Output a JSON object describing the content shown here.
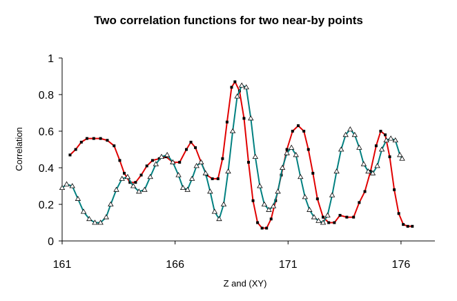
{
  "chart_data": {
    "type": "line",
    "title": "Two correlation functions for two near-by points",
    "xlabel": "Z and (XY)",
    "ylabel": "Correlation",
    "xlim": [
      161,
      177.5
    ],
    "ylim": [
      0,
      1
    ],
    "xticks": [
      161,
      166,
      171,
      176
    ],
    "yticks": [
      0,
      0.2,
      0.4,
      0.6,
      0.8,
      1
    ],
    "ytick_labels": [
      "0",
      "0.2",
      "0.4",
      "0.6",
      "0.8",
      "1"
    ],
    "grid": false,
    "legend": "none",
    "series": [
      {
        "color": "#e00000",
        "marker": "square",
        "marker_color": "#000000",
        "x": [
          161.35,
          161.6,
          161.85,
          162.1,
          162.4,
          162.7,
          163.0,
          163.3,
          163.55,
          163.75,
          164.0,
          164.25,
          164.5,
          164.75,
          165.0,
          165.3,
          165.6,
          165.9,
          166.2,
          166.5,
          166.7,
          166.9,
          167.15,
          167.4,
          167.65,
          167.9,
          168.1,
          168.3,
          168.5,
          168.65,
          168.85,
          169.05,
          169.25,
          169.45,
          169.65,
          169.85,
          170.05,
          170.25,
          170.45,
          170.7,
          170.95,
          171.2,
          171.45,
          171.7,
          171.9,
          172.1,
          172.3,
          172.55,
          172.8,
          173.05,
          173.3,
          173.6,
          173.9,
          174.15,
          174.4,
          174.65,
          174.9,
          175.1,
          175.3,
          175.5,
          175.7,
          175.9,
          176.1,
          176.3,
          176.5
        ],
        "y": [
          0.47,
          0.5,
          0.54,
          0.56,
          0.56,
          0.56,
          0.55,
          0.52,
          0.44,
          0.37,
          0.32,
          0.32,
          0.36,
          0.41,
          0.44,
          0.45,
          0.46,
          0.43,
          0.43,
          0.5,
          0.54,
          0.51,
          0.43,
          0.36,
          0.34,
          0.34,
          0.45,
          0.65,
          0.84,
          0.87,
          0.82,
          0.67,
          0.43,
          0.22,
          0.1,
          0.07,
          0.07,
          0.12,
          0.22,
          0.36,
          0.5,
          0.6,
          0.63,
          0.6,
          0.5,
          0.37,
          0.23,
          0.13,
          0.1,
          0.1,
          0.14,
          0.13,
          0.13,
          0.21,
          0.27,
          0.38,
          0.52,
          0.6,
          0.58,
          0.46,
          0.28,
          0.15,
          0.09,
          0.08,
          0.08
        ]
      },
      {
        "color": "#008080",
        "marker": "triangle",
        "marker_color": "#000000",
        "x": [
          161.0,
          161.2,
          161.45,
          161.7,
          161.95,
          162.2,
          162.45,
          162.7,
          162.95,
          163.15,
          163.4,
          163.65,
          163.9,
          164.15,
          164.4,
          164.65,
          164.9,
          165.15,
          165.4,
          165.65,
          165.9,
          166.15,
          166.35,
          166.55,
          166.75,
          166.95,
          167.15,
          167.35,
          167.55,
          167.75,
          167.95,
          168.15,
          168.35,
          168.55,
          168.75,
          168.95,
          169.15,
          169.35,
          169.55,
          169.75,
          169.95,
          170.15,
          170.35,
          170.55,
          170.75,
          170.95,
          171.15,
          171.35,
          171.55,
          171.75,
          171.95,
          172.15,
          172.35,
          172.55,
          172.75,
          172.95,
          173.15,
          173.35,
          173.55,
          173.75,
          173.95,
          174.15,
          174.35,
          174.55,
          174.75,
          174.95,
          175.15,
          175.35,
          175.55,
          175.75,
          175.95,
          176.05
        ],
        "y": [
          0.29,
          0.31,
          0.3,
          0.23,
          0.16,
          0.12,
          0.1,
          0.1,
          0.13,
          0.2,
          0.28,
          0.34,
          0.35,
          0.3,
          0.27,
          0.28,
          0.35,
          0.42,
          0.46,
          0.47,
          0.43,
          0.36,
          0.29,
          0.28,
          0.34,
          0.41,
          0.43,
          0.37,
          0.27,
          0.16,
          0.12,
          0.2,
          0.38,
          0.6,
          0.79,
          0.85,
          0.84,
          0.67,
          0.46,
          0.3,
          0.2,
          0.17,
          0.19,
          0.27,
          0.4,
          0.48,
          0.51,
          0.47,
          0.35,
          0.24,
          0.17,
          0.13,
          0.11,
          0.1,
          0.14,
          0.25,
          0.38,
          0.5,
          0.58,
          0.61,
          0.58,
          0.51,
          0.42,
          0.38,
          0.37,
          0.41,
          0.5,
          0.55,
          0.56,
          0.55,
          0.47,
          0.45
        ]
      }
    ]
  }
}
